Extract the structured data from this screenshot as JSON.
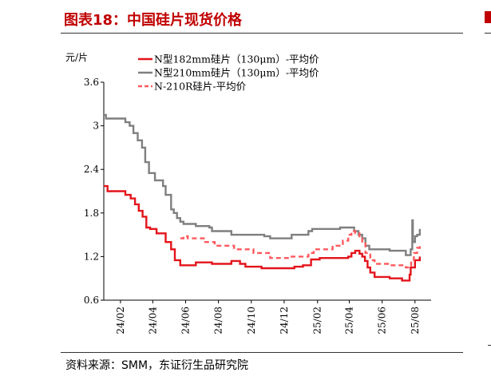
{
  "figure": {
    "title": "图表18：中国硅片现货价格",
    "source": "资料来源：SMM，东证衍生品研究院"
  },
  "chart_data": {
    "type": "line",
    "ylabel": "元/片",
    "ylim": [
      0.6,
      3.6
    ],
    "yticks": [
      "0.6",
      "1.2",
      "1.8",
      "2.4",
      "3",
      "3.6"
    ],
    "xlim": [
      "2024-01-01",
      "2025-08-31"
    ],
    "xticks": [
      {
        "label": "24/02",
        "date": "2024-02-01"
      },
      {
        "label": "24/04",
        "date": "2024-04-01"
      },
      {
        "label": "24/06",
        "date": "2024-06-01"
      },
      {
        "label": "24/08",
        "date": "2024-08-01"
      },
      {
        "label": "24/10",
        "date": "2024-10-01"
      },
      {
        "label": "24/12",
        "date": "2024-12-01"
      },
      {
        "label": "25/02",
        "date": "2025-02-01"
      },
      {
        "label": "25/04",
        "date": "2025-04-01"
      },
      {
        "label": "25/06",
        "date": "2025-06-01"
      },
      {
        "label": "25/08",
        "date": "2025-08-01"
      }
    ],
    "grid": false,
    "legend_position": "top-left",
    "series": [
      {
        "name": "N型182mm硅片（130μm）-平均价",
        "color": "#e3131b",
        "style": "solid",
        "points": [
          [
            "2024-01-01",
            2.17
          ],
          [
            "2024-01-08",
            2.1
          ],
          [
            "2024-02-05",
            2.1
          ],
          [
            "2024-02-10",
            2.05
          ],
          [
            "2024-02-20",
            2.0
          ],
          [
            "2024-02-28",
            1.92
          ],
          [
            "2024-03-06",
            1.83
          ],
          [
            "2024-03-13",
            1.75
          ],
          [
            "2024-03-20",
            1.6
          ],
          [
            "2024-03-27",
            1.58
          ],
          [
            "2024-04-03",
            1.58
          ],
          [
            "2024-04-08",
            1.52
          ],
          [
            "2024-04-20",
            1.52
          ],
          [
            "2024-04-25",
            1.4
          ],
          [
            "2024-05-05",
            1.3
          ],
          [
            "2024-05-12",
            1.15
          ],
          [
            "2024-05-22",
            1.08
          ],
          [
            "2024-06-01",
            1.08
          ],
          [
            "2024-06-20",
            1.12
          ],
          [
            "2024-07-10",
            1.12
          ],
          [
            "2024-07-20",
            1.1
          ],
          [
            "2024-08-20",
            1.1
          ],
          [
            "2024-08-25",
            1.14
          ],
          [
            "2024-09-10",
            1.1
          ],
          [
            "2024-09-20",
            1.06
          ],
          [
            "2024-10-10",
            1.06
          ],
          [
            "2024-10-20",
            1.04
          ],
          [
            "2024-12-10",
            1.04
          ],
          [
            "2024-12-20",
            1.06
          ],
          [
            "2025-01-05",
            1.08
          ],
          [
            "2025-01-20",
            1.16
          ],
          [
            "2025-02-05",
            1.18
          ],
          [
            "2025-03-15",
            1.18
          ],
          [
            "2025-03-30",
            1.2
          ],
          [
            "2025-04-05",
            1.25
          ],
          [
            "2025-04-12",
            1.28
          ],
          [
            "2025-04-20",
            1.24
          ],
          [
            "2025-04-25",
            1.2
          ],
          [
            "2025-04-30",
            1.14
          ],
          [
            "2025-05-05",
            1.05
          ],
          [
            "2025-05-10",
            0.98
          ],
          [
            "2025-05-18",
            0.92
          ],
          [
            "2025-06-05",
            0.92
          ],
          [
            "2025-06-15",
            0.9
          ],
          [
            "2025-07-01",
            0.9
          ],
          [
            "2025-07-08",
            0.87
          ],
          [
            "2025-07-20",
            0.87
          ],
          [
            "2025-07-22",
            0.95
          ],
          [
            "2025-07-24",
            1.05
          ],
          [
            "2025-07-26",
            1.05
          ],
          [
            "2025-08-01",
            1.15
          ],
          [
            "2025-08-10",
            1.2
          ]
        ]
      },
      {
        "name": "N型210mm硅片（130μm）-平均价",
        "color": "#7f7f7f",
        "style": "solid",
        "points": [
          [
            "2024-01-01",
            3.15
          ],
          [
            "2024-01-05",
            3.1
          ],
          [
            "2024-02-05",
            3.1
          ],
          [
            "2024-02-10",
            3.05
          ],
          [
            "2024-02-18",
            3.0
          ],
          [
            "2024-02-25",
            2.9
          ],
          [
            "2024-03-04",
            2.8
          ],
          [
            "2024-03-12",
            2.7
          ],
          [
            "2024-03-18",
            2.5
          ],
          [
            "2024-03-25",
            2.35
          ],
          [
            "2024-04-05",
            2.25
          ],
          [
            "2024-04-20",
            2.17
          ],
          [
            "2024-04-25",
            2.05
          ],
          [
            "2024-05-05",
            1.85
          ],
          [
            "2024-05-10",
            1.8
          ],
          [
            "2024-05-16",
            1.73
          ],
          [
            "2024-05-22",
            1.68
          ],
          [
            "2024-05-28",
            1.65
          ],
          [
            "2024-06-15",
            1.65
          ],
          [
            "2024-06-20",
            1.62
          ],
          [
            "2024-07-10",
            1.62
          ],
          [
            "2024-07-15",
            1.6
          ],
          [
            "2024-07-20",
            1.55
          ],
          [
            "2024-08-20",
            1.55
          ],
          [
            "2024-08-25",
            1.5
          ],
          [
            "2024-10-20",
            1.5
          ],
          [
            "2024-10-25",
            1.48
          ],
          [
            "2024-11-05",
            1.45
          ],
          [
            "2024-12-10",
            1.45
          ],
          [
            "2024-12-15",
            1.5
          ],
          [
            "2025-01-05",
            1.5
          ],
          [
            "2025-01-15",
            1.55
          ],
          [
            "2025-01-22",
            1.58
          ],
          [
            "2025-03-10",
            1.58
          ],
          [
            "2025-03-15",
            1.6
          ],
          [
            "2025-04-05",
            1.6
          ],
          [
            "2025-04-10",
            1.55
          ],
          [
            "2025-04-18",
            1.5
          ],
          [
            "2025-04-25",
            1.45
          ],
          [
            "2025-05-01",
            1.35
          ],
          [
            "2025-05-08",
            1.3
          ],
          [
            "2025-06-05",
            1.3
          ],
          [
            "2025-06-15",
            1.28
          ],
          [
            "2025-07-10",
            1.28
          ],
          [
            "2025-07-15",
            1.22
          ],
          [
            "2025-07-20",
            1.22
          ],
          [
            "2025-07-24",
            1.3
          ],
          [
            "2025-07-27",
            1.7
          ],
          [
            "2025-07-28",
            1.4
          ],
          [
            "2025-08-01",
            1.48
          ],
          [
            "2025-08-05",
            1.5
          ],
          [
            "2025-08-10",
            1.58
          ]
        ]
      },
      {
        "name": "N-210R硅片-平均价",
        "color": "#ff5a5f",
        "style": "dashed",
        "points": [
          [
            "2024-05-22",
            1.45
          ],
          [
            "2024-05-28",
            1.48
          ],
          [
            "2024-06-05",
            1.45
          ],
          [
            "2024-06-25",
            1.45
          ],
          [
            "2024-07-05",
            1.4
          ],
          [
            "2024-07-15",
            1.4
          ],
          [
            "2024-07-25",
            1.35
          ],
          [
            "2024-08-25",
            1.35
          ],
          [
            "2024-08-30",
            1.3
          ],
          [
            "2024-09-25",
            1.3
          ],
          [
            "2024-10-05",
            1.25
          ],
          [
            "2024-10-25",
            1.25
          ],
          [
            "2024-11-05",
            1.18
          ],
          [
            "2024-12-05",
            1.18
          ],
          [
            "2024-12-15",
            1.2
          ],
          [
            "2025-01-05",
            1.2
          ],
          [
            "2025-01-15",
            1.25
          ],
          [
            "2025-01-25",
            1.3
          ],
          [
            "2025-02-15",
            1.3
          ],
          [
            "2025-03-01",
            1.35
          ],
          [
            "2025-03-20",
            1.42
          ],
          [
            "2025-03-30",
            1.5
          ],
          [
            "2025-04-05",
            1.55
          ],
          [
            "2025-04-12",
            1.52
          ],
          [
            "2025-04-20",
            1.45
          ],
          [
            "2025-04-25",
            1.38
          ],
          [
            "2025-05-01",
            1.25
          ],
          [
            "2025-05-10",
            1.15
          ],
          [
            "2025-05-18",
            1.1
          ],
          [
            "2025-06-05",
            1.1
          ],
          [
            "2025-06-15",
            1.08
          ],
          [
            "2025-07-10",
            1.08
          ],
          [
            "2025-07-15",
            1.05
          ],
          [
            "2025-07-20",
            1.05
          ],
          [
            "2025-07-25",
            1.15
          ],
          [
            "2025-07-30",
            1.25
          ],
          [
            "2025-08-05",
            1.32
          ],
          [
            "2025-08-10",
            1.38
          ]
        ]
      }
    ]
  }
}
